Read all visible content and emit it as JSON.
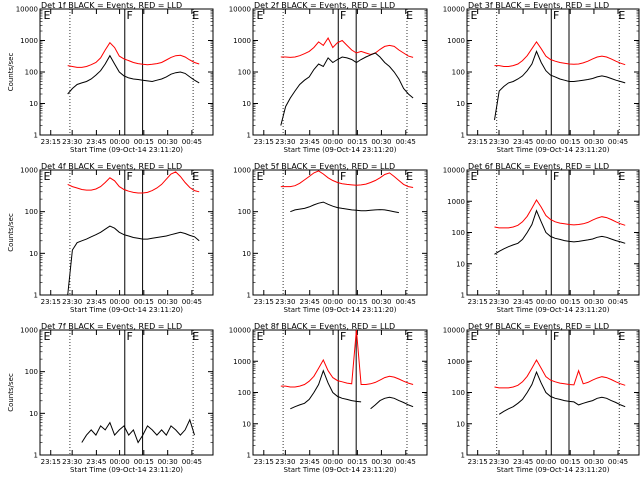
{
  "chart_data": [
    {
      "type": "line",
      "title": "Det 1f BLACK = Events, RED = LLD",
      "xlabel": "Start Time (09-Oct-14 23:11:20)",
      "ylabel": "Counts/sec",
      "yscale": "log",
      "ylim": [
        1,
        10000
      ],
      "x_ticks": [
        "23:15",
        "23:30",
        "23:45",
        "00:00",
        "00:15",
        "00:30",
        "00:45"
      ],
      "y_ticks": [
        "1",
        "10",
        "100",
        "1000",
        "10000"
      ],
      "markers": [
        "E",
        "F",
        "E"
      ],
      "series": [
        {
          "color": "#ff0000",
          "values": [
            160,
            150,
            140,
            140,
            150,
            170,
            200,
            280,
            500,
            850,
            600,
            320,
            260,
            230,
            200,
            185,
            175,
            170,
            175,
            185,
            200,
            240,
            290,
            330,
            340,
            300,
            240,
            200,
            180
          ]
        },
        {
          "color": "#000000",
          "values": [
            20,
            30,
            40,
            45,
            50,
            60,
            80,
            110,
            180,
            330,
            180,
            100,
            75,
            65,
            60,
            58,
            55,
            52,
            50,
            55,
            60,
            70,
            85,
            95,
            100,
            90,
            70,
            55,
            45
          ]
        }
      ]
    },
    {
      "type": "line",
      "title": "Det 2f BLACK = Events, RED = LLD",
      "xlabel": "Start Time (09-Oct-14 23:11:20)",
      "ylabel": "",
      "yscale": "log",
      "ylim": [
        1,
        10000
      ],
      "x_ticks": [
        "23:15",
        "23:30",
        "23:45",
        "00:00",
        "00:15",
        "00:30",
        "00:45"
      ],
      "y_ticks": [
        "1",
        "10",
        "100",
        "1000",
        "10000"
      ],
      "markers": [
        "E",
        "F",
        "E"
      ],
      "series": [
        {
          "color": "#ff0000",
          "values": [
            300,
            300,
            290,
            300,
            330,
            380,
            450,
            600,
            900,
            700,
            1200,
            600,
            850,
            1000,
            700,
            500,
            400,
            450,
            400,
            360,
            400,
            520,
            650,
            700,
            650,
            500,
            400,
            320,
            290
          ]
        },
        {
          "color": "#000000",
          "values": [
            2,
            8,
            15,
            25,
            40,
            55,
            70,
            120,
            180,
            150,
            280,
            200,
            250,
            300,
            280,
            250,
            200,
            250,
            300,
            350,
            400,
            300,
            200,
            150,
            100,
            60,
            30,
            20,
            15
          ]
        }
      ]
    },
    {
      "type": "line",
      "title": "Det 3f BLACK = Events, RED = LLD",
      "xlabel": "Start Time (09-Oct-14 23:11:20)",
      "ylabel": "",
      "yscale": "log",
      "ylim": [
        1,
        10000
      ],
      "x_ticks": [
        "23:15",
        "23:30",
        "23:45",
        "00:00",
        "00:15",
        "00:30",
        "00:45"
      ],
      "y_ticks": [
        "1",
        "10",
        "100",
        "1000",
        "10000"
      ],
      "markers": [
        "E",
        "F",
        "E"
      ],
      "series": [
        {
          "color": "#ff0000",
          "values": [
            160,
            160,
            150,
            150,
            160,
            180,
            230,
            330,
            550,
            900,
            550,
            320,
            250,
            220,
            200,
            190,
            180,
            175,
            180,
            195,
            220,
            260,
            300,
            320,
            300,
            260,
            220,
            190,
            170
          ]
        },
        {
          "color": "#000000",
          "values": [
            3,
            25,
            35,
            45,
            50,
            60,
            75,
            110,
            180,
            450,
            200,
            110,
            80,
            70,
            60,
            55,
            50,
            50,
            52,
            55,
            58,
            62,
            70,
            75,
            70,
            62,
            55,
            50,
            45
          ]
        }
      ]
    },
    {
      "type": "line",
      "title": "Det 4f BLACK = Events, RED = LLD",
      "xlabel": "Start Time (09-Oct-14 23:11:20)",
      "ylabel": "Counts/sec",
      "yscale": "log",
      "ylim": [
        1,
        1000
      ],
      "x_ticks": [
        "23:15",
        "23:30",
        "23:45",
        "00:00",
        "00:15",
        "00:30",
        "00:45"
      ],
      "y_ticks": [
        "1",
        "10",
        "100",
        "1000"
      ],
      "markers": [
        "E",
        "F",
        "E"
      ],
      "series": [
        {
          "color": "#ff0000",
          "values": [
            450,
            400,
            370,
            340,
            330,
            330,
            350,
            400,
            500,
            650,
            550,
            400,
            340,
            310,
            290,
            280,
            280,
            290,
            320,
            370,
            450,
            600,
            800,
            900,
            700,
            500,
            380,
            320,
            300
          ]
        },
        {
          "color": "#000000",
          "values": [
            1,
            12,
            18,
            20,
            22,
            25,
            28,
            32,
            38,
            45,
            40,
            32,
            28,
            26,
            24,
            23,
            22,
            22,
            23,
            24,
            25,
            26,
            28,
            30,
            32,
            30,
            27,
            25,
            20
          ]
        }
      ]
    },
    {
      "type": "line",
      "title": "Det 5f BLACK = Events, RED = LLD",
      "xlabel": "Start Time (09-Oct-14 23:11:20)",
      "ylabel": "",
      "yscale": "log",
      "ylim": [
        1,
        1000
      ],
      "x_ticks": [
        "23:15",
        "23:30",
        "23:45",
        "00:00",
        "00:15",
        "00:30",
        "00:45"
      ],
      "y_ticks": [
        "1",
        "10",
        "100",
        "1000"
      ],
      "markers": [
        "E",
        "F",
        "E"
      ],
      "series": [
        {
          "color": "#ff0000",
          "values": [
            400,
            400,
            400,
            420,
            480,
            580,
            700,
            850,
            950,
            800,
            650,
            560,
            500,
            470,
            450,
            440,
            430,
            440,
            460,
            500,
            560,
            650,
            780,
            850,
            700,
            560,
            450,
            400,
            380
          ]
        },
        {
          "color": "#000000",
          "values": [
            0,
            0,
            100,
            110,
            115,
            120,
            130,
            145,
            160,
            170,
            150,
            135,
            125,
            120,
            115,
            110,
            108,
            105,
            105,
            108,
            110,
            112,
            110,
            105,
            100,
            95,
            0,
            0,
            0
          ]
        }
      ]
    },
    {
      "type": "line",
      "title": "Det 6f BLACK = Events, RED = LLD",
      "xlabel": "Start Time (09-Oct-14 23:11:20)",
      "ylabel": "",
      "yscale": "log",
      "ylim": [
        1,
        10000
      ],
      "x_ticks": [
        "23:15",
        "23:30",
        "23:45",
        "00:00",
        "00:15",
        "00:30",
        "00:45"
      ],
      "y_ticks": [
        "1",
        "10",
        "100",
        "1000",
        "10000"
      ],
      "markers": [
        "E",
        "F",
        "E"
      ],
      "series": [
        {
          "color": "#ff0000",
          "values": [
            150,
            140,
            140,
            140,
            150,
            170,
            220,
            330,
            600,
            1100,
            650,
            350,
            260,
            220,
            200,
            190,
            180,
            175,
            180,
            190,
            210,
            250,
            290,
            320,
            300,
            260,
            220,
            190,
            170
          ]
        },
        {
          "color": "#000000",
          "values": [
            20,
            25,
            30,
            35,
            40,
            45,
            60,
            100,
            180,
            500,
            220,
            100,
            75,
            65,
            60,
            55,
            52,
            50,
            52,
            55,
            58,
            62,
            70,
            75,
            70,
            62,
            55,
            50,
            45
          ]
        }
      ]
    },
    {
      "type": "line",
      "title": "Det 7f BLACK = Events, RED = LLD",
      "xlabel": "Start Time (09-Oct-14 23:11:20)",
      "ylabel": "Counts/sec",
      "yscale": "log",
      "ylim": [
        1,
        1000
      ],
      "x_ticks": [
        "23:15",
        "23:30",
        "23:45",
        "00:00",
        "00:15",
        "00:30",
        "00:45"
      ],
      "y_ticks": [
        "1",
        "10",
        "100",
        "1000"
      ],
      "markers": [
        "E",
        "F",
        "E"
      ],
      "series": [
        {
          "color": "#000000",
          "values": [
            0,
            0,
            0,
            2,
            3,
            4,
            3,
            5,
            4,
            6,
            3,
            4,
            5,
            3,
            4,
            2,
            3,
            5,
            4,
            3,
            4,
            3,
            5,
            4,
            3,
            4,
            7,
            3,
            0
          ]
        }
      ]
    },
    {
      "type": "line",
      "title": "Det 8f BLACK = Events, RED = LLD",
      "xlabel": "Start Time (09-Oct-14 23:11:20)",
      "ylabel": "",
      "yscale": "log",
      "ylim": [
        1,
        10000
      ],
      "x_ticks": [
        "23:15",
        "23:30",
        "23:45",
        "00:00",
        "00:15",
        "00:30",
        "00:45"
      ],
      "y_ticks": [
        "1",
        "10",
        "100",
        "1000",
        "10000"
      ],
      "markers": [
        "E",
        "F",
        "E"
      ],
      "series": [
        {
          "color": "#ff0000",
          "values": [
            160,
            160,
            150,
            150,
            160,
            180,
            230,
            330,
            600,
            1100,
            500,
            300,
            240,
            220,
            200,
            190,
            10000,
            180,
            180,
            190,
            210,
            250,
            300,
            330,
            310,
            270,
            230,
            200,
            180
          ]
        },
        {
          "color": "#000000",
          "values": [
            0,
            0,
            30,
            35,
            40,
            45,
            60,
            100,
            180,
            500,
            200,
            100,
            75,
            65,
            60,
            55,
            52,
            50,
            0,
            30,
            40,
            55,
            65,
            70,
            65,
            55,
            48,
            40,
            35
          ]
        }
      ]
    },
    {
      "type": "line",
      "title": "Det 9f BLACK = Events, RED = LLD",
      "xlabel": "Start Time (09-Oct-14 23:11:20)",
      "ylabel": "",
      "yscale": "log",
      "ylim": [
        1,
        10000
      ],
      "x_ticks": [
        "23:15",
        "23:30",
        "23:45",
        "00:00",
        "00:15",
        "00:30",
        "00:45"
      ],
      "y_ticks": [
        "1",
        "10",
        "100",
        "1000",
        "10000"
      ],
      "markers": [
        "E",
        "F",
        "E"
      ],
      "series": [
        {
          "color": "#ff0000",
          "values": [
            150,
            140,
            140,
            140,
            150,
            170,
            220,
            330,
            600,
            1100,
            600,
            320,
            250,
            220,
            200,
            190,
            180,
            175,
            500,
            190,
            210,
            250,
            290,
            320,
            300,
            260,
            220,
            190,
            170
          ]
        },
        {
          "color": "#000000",
          "values": [
            0,
            20,
            25,
            30,
            35,
            45,
            60,
            100,
            180,
            450,
            200,
            100,
            75,
            65,
            60,
            55,
            52,
            50,
            40,
            45,
            50,
            55,
            65,
            70,
            65,
            55,
            48,
            40,
            35
          ]
        }
      ]
    }
  ]
}
